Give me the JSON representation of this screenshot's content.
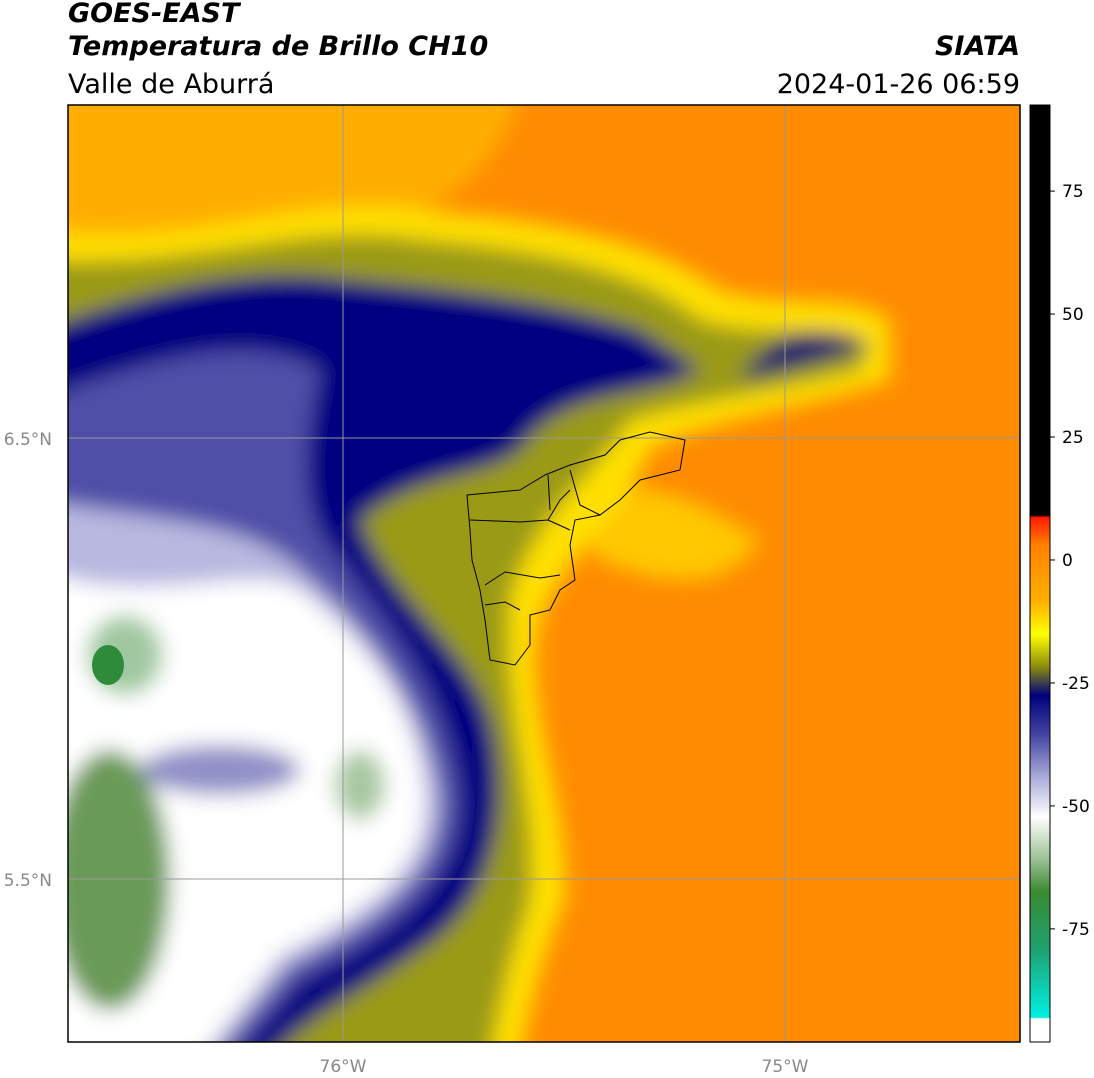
{
  "header": {
    "title": "GOES-EAST",
    "subtitle": "Temperatura de Brillo CH10",
    "region": "Valle de Aburrá",
    "source": "SIATA",
    "datetime": "2024-01-26 06:59"
  },
  "map": {
    "lat_labels": [
      "6.5°N",
      "5.5°N"
    ],
    "lon_labels": [
      "76°W",
      "75°W"
    ]
  },
  "colorbar": {
    "lim": [
      -98,
      92.5
    ],
    "ticks": [
      75,
      50,
      25,
      0,
      -25,
      -50,
      -75
    ]
  }
}
